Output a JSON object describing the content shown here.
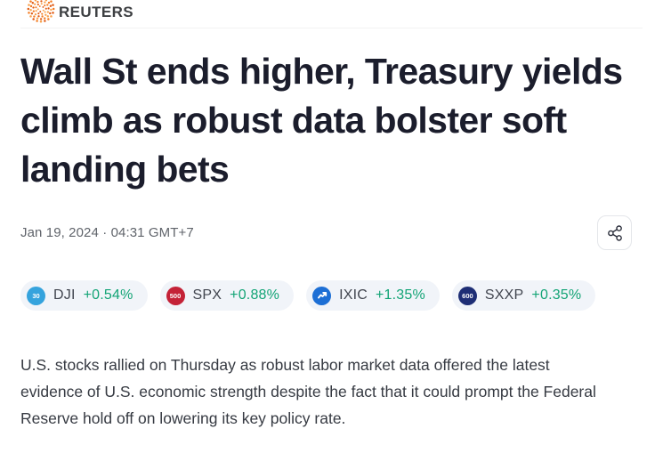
{
  "brand": {
    "name": "REUTERS",
    "logo_icon": "reuters-orbit-dots"
  },
  "article": {
    "headline": "Wall St ends higher, Treasury yields climb as robust data bolster soft landing bets",
    "date": "Jan 19, 2024 · 04:31 GMT+7",
    "body": "U.S. stocks rallied on Thursday as robust labor market data offered the latest evidence of U.S. economic strength despite the fact that it could prompt the Federal Reserve hold off on lowering its key policy rate."
  },
  "tickers": [
    {
      "symbol": "DJI",
      "change": "+0.54%",
      "badge_text": "30",
      "badge_color": "#35a3dd",
      "icon": "dow-30-badge"
    },
    {
      "symbol": "SPX",
      "change": "+0.88%",
      "badge_text": "500",
      "badge_color": "#c42237",
      "icon": "sp-500-badge"
    },
    {
      "symbol": "IXIC",
      "change": "+1.35%",
      "badge_text": "",
      "badge_color": "#1d6fd5",
      "icon": "nasdaq-trend-badge"
    },
    {
      "symbol": "SXXP",
      "change": "+0.35%",
      "badge_text": "600",
      "badge_color": "#1e2e75",
      "icon": "stoxx-600-badge"
    }
  ],
  "colors": {
    "headline_text": "#1b1d2c",
    "positive_change": "#13a476",
    "chip_background": "#f1f4f9",
    "body_text": "#363a42",
    "date_text": "#60646b",
    "logo_orange": "#f47b20",
    "logo_orange_dark": "#e05a12"
  }
}
